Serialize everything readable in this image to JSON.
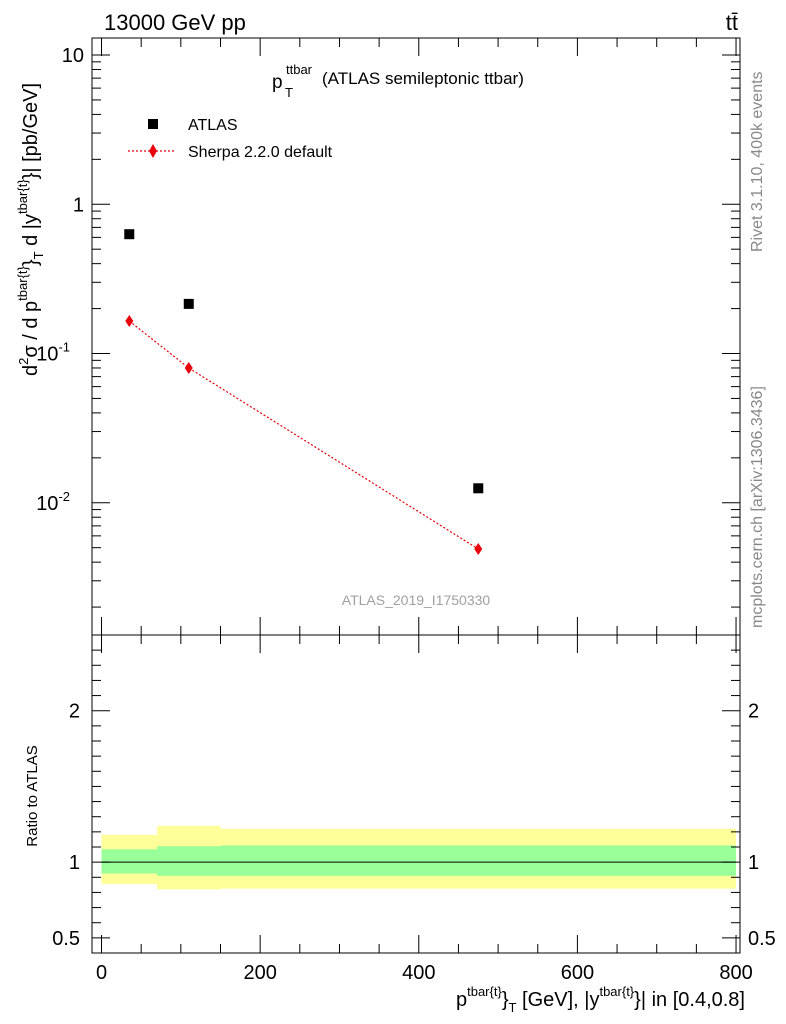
{
  "header": {
    "energy_label": "13000 GeV pp",
    "process_label": "tt̄"
  },
  "side_labels": {
    "rivet": "Rivet 3.1.10,  400k events",
    "mcplots": "mcplots.cern.ch [arXiv:1306.3436]"
  },
  "plot_title": {
    "main": "p",
    "sub": "T",
    "sup": "ttbar",
    "rest": " (ATLAS semileptonic ttbar)"
  },
  "analysis_id": "ATLAS_2019_I1750330",
  "legend": {
    "atlas": "ATLAS",
    "sherpa": "Sherpa 2.2.0 default"
  },
  "colors": {
    "data": "#000000",
    "mc": "#e8000b",
    "band_inner": "#99ff99",
    "band_outer": "#ffff99"
  },
  "chart_data": [
    {
      "type": "scatter",
      "title": "p_T^ttbar (ATLAS semileptonic ttbar)",
      "ylabel": "d²σ / d p^{tbar{t}}_T d |y^{tbar{t}}| [pb/GeV]",
      "yscale": "log",
      "ylim": [
        0.0013,
        13
      ],
      "xlim": [
        -12,
        805
      ],
      "y_tick_labels": [
        "10^-2",
        "10^-1",
        "1",
        "10"
      ],
      "series": [
        {
          "name": "ATLAS",
          "marker": "square",
          "points": [
            {
              "x": 35,
              "y": 0.63
            },
            {
              "x": 110,
              "y": 0.215
            },
            {
              "x": 475,
              "y": 0.0125
            }
          ]
        },
        {
          "name": "Sherpa 2.2.0 default",
          "marker": "diamond",
          "line": "dotted",
          "points": [
            {
              "x": 35,
              "y": 0.165
            },
            {
              "x": 110,
              "y": 0.08
            },
            {
              "x": 475,
              "y": 0.0049
            }
          ]
        }
      ]
    },
    {
      "type": "area",
      "ylabel": "Ratio to ATLAS",
      "xlabel": "p^{tbar{t}}_T [GeV], |y^{tbar{t}}| in [0.4,0.8]",
      "ylim": [
        0.4,
        2.5
      ],
      "xlim": [
        -12,
        805
      ],
      "x_ticks": [
        0,
        200,
        400,
        600,
        800
      ],
      "y_ticks": [
        0.5,
        1,
        2
      ],
      "reference": 1,
      "bins": [
        {
          "x0": 0,
          "x1": 70,
          "inner_lo": 0.925,
          "inner_hi": 1.085,
          "outer_lo": 0.855,
          "outer_hi": 1.18
        },
        {
          "x0": 70,
          "x1": 150,
          "inner_lo": 0.91,
          "inner_hi": 1.105,
          "outer_lo": 0.82,
          "outer_hi": 1.24
        },
        {
          "x0": 150,
          "x1": 800,
          "inner_lo": 0.91,
          "inner_hi": 1.11,
          "outer_lo": 0.825,
          "outer_hi": 1.22
        }
      ]
    }
  ]
}
